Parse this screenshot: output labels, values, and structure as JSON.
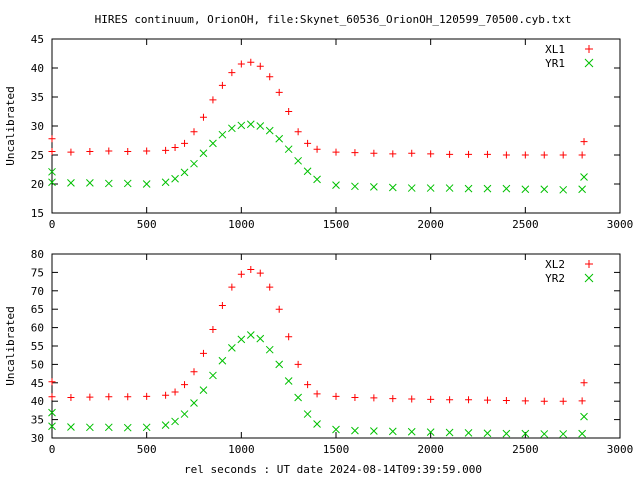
{
  "title": "HIRES continuum, OrionOH, file:Skynet_60536_OrionOH_120599_70500.cyb.txt",
  "xlabel": "rel seconds : UT date 2024-08-14T09:39:59.000",
  "colors": {
    "red": "#ff0000",
    "green": "#00c000",
    "frame": "#000000"
  },
  "chart_data": [
    {
      "type": "scatter",
      "ylabel": "Uncalibrated",
      "xlim": [
        0,
        3000
      ],
      "ylim": [
        15,
        45
      ],
      "x_ticks": [
        0,
        500,
        1000,
        1500,
        2000,
        2500,
        3000
      ],
      "y_ticks": [
        15,
        20,
        25,
        30,
        35,
        40,
        45
      ],
      "legend_position": "top-right",
      "series": [
        {
          "name": "XL1",
          "marker": "plus",
          "color": "#ff0000",
          "points": [
            [
              0,
              27.8
            ],
            [
              0,
              25.6
            ],
            [
              100,
              25.5
            ],
            [
              200,
              25.6
            ],
            [
              300,
              25.7
            ],
            [
              400,
              25.6
            ],
            [
              500,
              25.7
            ],
            [
              600,
              25.8
            ],
            [
              650,
              26.3
            ],
            [
              700,
              27.0
            ],
            [
              750,
              29.0
            ],
            [
              800,
              31.5
            ],
            [
              850,
              34.5
            ],
            [
              900,
              37.0
            ],
            [
              950,
              39.2
            ],
            [
              1000,
              40.7
            ],
            [
              1050,
              41.0
            ],
            [
              1100,
              40.3
            ],
            [
              1150,
              38.5
            ],
            [
              1200,
              35.8
            ],
            [
              1250,
              32.5
            ],
            [
              1300,
              29.0
            ],
            [
              1350,
              27.0
            ],
            [
              1400,
              26.0
            ],
            [
              1500,
              25.5
            ],
            [
              1600,
              25.4
            ],
            [
              1700,
              25.3
            ],
            [
              1800,
              25.2
            ],
            [
              1900,
              25.3
            ],
            [
              2000,
              25.2
            ],
            [
              2100,
              25.1
            ],
            [
              2200,
              25.1
            ],
            [
              2300,
              25.1
            ],
            [
              2400,
              25.0
            ],
            [
              2500,
              25.0
            ],
            [
              2600,
              25.0
            ],
            [
              2700,
              25.0
            ],
            [
              2800,
              25.0
            ],
            [
              2810,
              27.3
            ]
          ]
        },
        {
          "name": "YR1",
          "marker": "cross",
          "color": "#00c000",
          "points": [
            [
              0,
              22.1
            ],
            [
              0,
              20.3
            ],
            [
              100,
              20.2
            ],
            [
              200,
              20.2
            ],
            [
              300,
              20.1
            ],
            [
              400,
              20.1
            ],
            [
              500,
              20.0
            ],
            [
              600,
              20.3
            ],
            [
              650,
              20.9
            ],
            [
              700,
              22.0
            ],
            [
              750,
              23.5
            ],
            [
              800,
              25.3
            ],
            [
              850,
              27.0
            ],
            [
              900,
              28.5
            ],
            [
              950,
              29.6
            ],
            [
              1000,
              30.1
            ],
            [
              1050,
              30.3
            ],
            [
              1100,
              30.0
            ],
            [
              1150,
              29.2
            ],
            [
              1200,
              27.8
            ],
            [
              1250,
              26.0
            ],
            [
              1300,
              24.0
            ],
            [
              1350,
              22.2
            ],
            [
              1400,
              20.8
            ],
            [
              1500,
              19.8
            ],
            [
              1600,
              19.6
            ],
            [
              1700,
              19.5
            ],
            [
              1800,
              19.4
            ],
            [
              1900,
              19.3
            ],
            [
              2000,
              19.3
            ],
            [
              2100,
              19.3
            ],
            [
              2200,
              19.2
            ],
            [
              2300,
              19.2
            ],
            [
              2400,
              19.2
            ],
            [
              2500,
              19.1
            ],
            [
              2600,
              19.1
            ],
            [
              2700,
              19.0
            ],
            [
              2800,
              19.1
            ],
            [
              2810,
              21.2
            ]
          ]
        }
      ]
    },
    {
      "type": "scatter",
      "ylabel": "Uncalibrated",
      "xlim": [
        0,
        3000
      ],
      "ylim": [
        30,
        80
      ],
      "x_ticks": [
        0,
        500,
        1000,
        1500,
        2000,
        2500,
        3000
      ],
      "y_ticks": [
        30,
        35,
        40,
        45,
        50,
        55,
        60,
        65,
        70,
        75,
        80
      ],
      "legend_position": "top-right",
      "series": [
        {
          "name": "XL2",
          "marker": "plus",
          "color": "#ff0000",
          "points": [
            [
              0,
              45.3
            ],
            [
              0,
              41.2
            ],
            [
              100,
              41.0
            ],
            [
              200,
              41.1
            ],
            [
              300,
              41.2
            ],
            [
              400,
              41.2
            ],
            [
              500,
              41.3
            ],
            [
              600,
              41.6
            ],
            [
              650,
              42.5
            ],
            [
              700,
              44.5
            ],
            [
              750,
              48.0
            ],
            [
              800,
              53.0
            ],
            [
              850,
              59.5
            ],
            [
              900,
              66.0
            ],
            [
              950,
              71.0
            ],
            [
              1000,
              74.5
            ],
            [
              1050,
              75.8
            ],
            [
              1100,
              74.8
            ],
            [
              1150,
              71.0
            ],
            [
              1200,
              65.0
            ],
            [
              1250,
              57.5
            ],
            [
              1300,
              50.0
            ],
            [
              1350,
              44.5
            ],
            [
              1400,
              42.0
            ],
            [
              1500,
              41.3
            ],
            [
              1600,
              41.0
            ],
            [
              1700,
              40.9
            ],
            [
              1800,
              40.7
            ],
            [
              1900,
              40.6
            ],
            [
              2000,
              40.5
            ],
            [
              2100,
              40.4
            ],
            [
              2200,
              40.4
            ],
            [
              2300,
              40.3
            ],
            [
              2400,
              40.2
            ],
            [
              2500,
              40.1
            ],
            [
              2600,
              40.0
            ],
            [
              2700,
              40.0
            ],
            [
              2800,
              40.1
            ],
            [
              2810,
              45.0
            ]
          ]
        },
        {
          "name": "YR2",
          "marker": "cross",
          "color": "#00c000",
          "points": [
            [
              0,
              36.9
            ],
            [
              0,
              33.2
            ],
            [
              100,
              33.0
            ],
            [
              200,
              32.9
            ],
            [
              300,
              32.9
            ],
            [
              400,
              32.8
            ],
            [
              500,
              32.9
            ],
            [
              600,
              33.5
            ],
            [
              650,
              34.5
            ],
            [
              700,
              36.5
            ],
            [
              750,
              39.5
            ],
            [
              800,
              43.0
            ],
            [
              850,
              47.0
            ],
            [
              900,
              51.0
            ],
            [
              950,
              54.5
            ],
            [
              1000,
              56.8
            ],
            [
              1050,
              58.0
            ],
            [
              1100,
              57.0
            ],
            [
              1150,
              54.0
            ],
            [
              1200,
              50.0
            ],
            [
              1250,
              45.5
            ],
            [
              1300,
              41.0
            ],
            [
              1350,
              36.5
            ],
            [
              1400,
              33.8
            ],
            [
              1500,
              32.3
            ],
            [
              1600,
              32.0
            ],
            [
              1700,
              31.9
            ],
            [
              1800,
              31.8
            ],
            [
              1900,
              31.7
            ],
            [
              2000,
              31.6
            ],
            [
              2100,
              31.5
            ],
            [
              2200,
              31.4
            ],
            [
              2300,
              31.3
            ],
            [
              2400,
              31.2
            ],
            [
              2500,
              31.2
            ],
            [
              2600,
              31.1
            ],
            [
              2700,
              31.1
            ],
            [
              2800,
              31.2
            ],
            [
              2810,
              35.8
            ]
          ]
        }
      ]
    }
  ]
}
